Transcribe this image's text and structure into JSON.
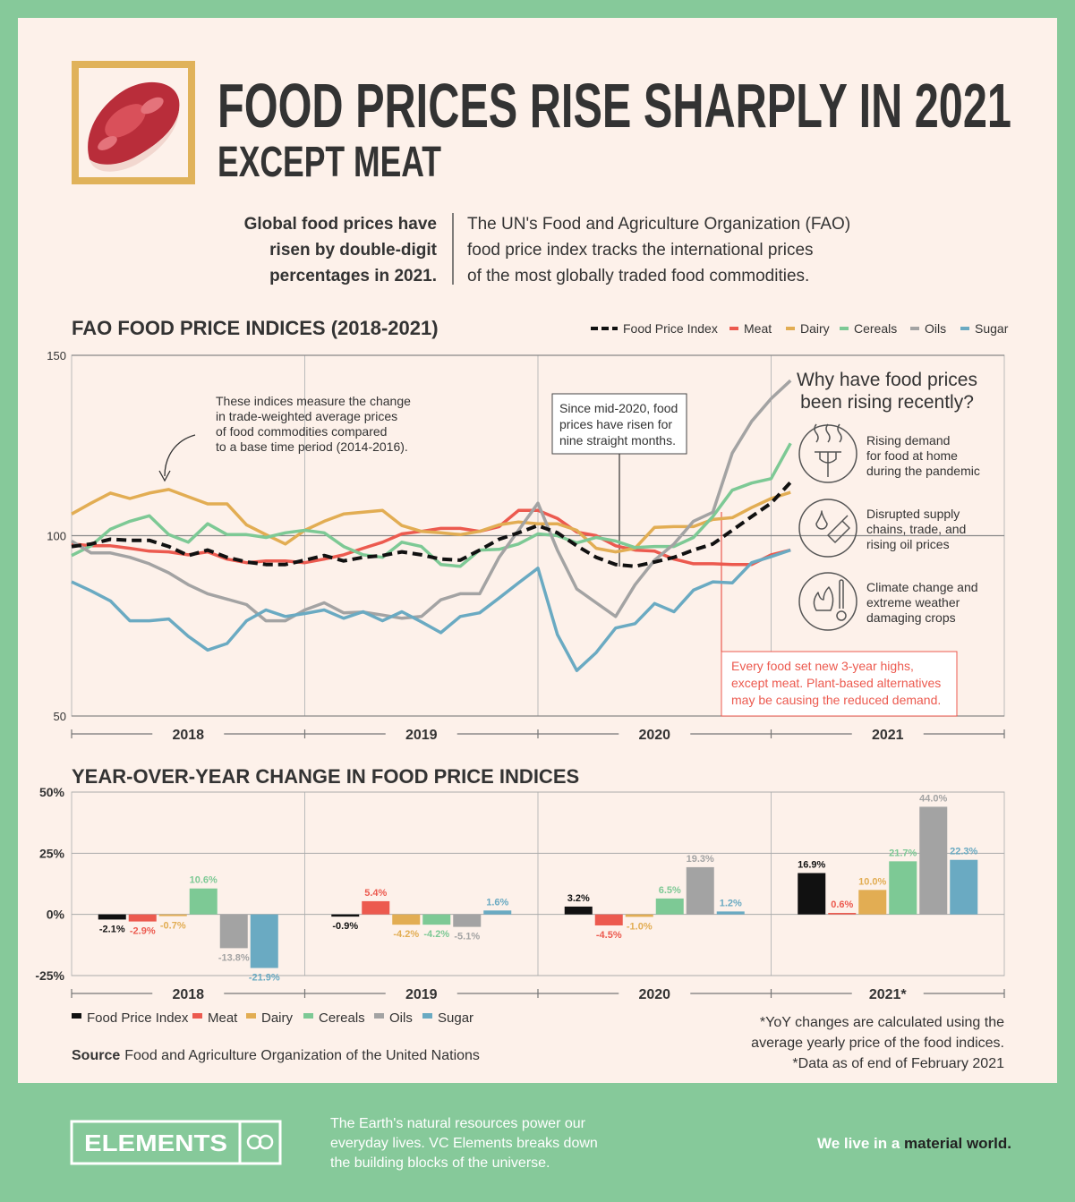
{
  "header": {
    "title": "FOOD PRICES RISE SHARPLY IN 2021",
    "subtitle": "EXCEPT MEAT"
  },
  "intro": {
    "left": [
      "Global food prices have",
      "risen by double-digit",
      "percentages in 2021."
    ],
    "right": [
      "The UN's Food and Agriculture Organization (FAO)",
      "food price index tracks the international prices",
      "of the most globally traded food commodities."
    ]
  },
  "chart_data": [
    {
      "type": "line",
      "title": "FAO FOOD PRICE INDICES (2018-2021)",
      "categories": [
        "2018",
        "2019",
        "2020",
        "2021"
      ],
      "ylim": [
        50,
        150
      ],
      "yticks": [
        50,
        100,
        150
      ],
      "grid": true,
      "series": [
        {
          "name": "Food Price Index",
          "color": "#111111",
          "line_style": "dashed",
          "values": [
            [
              97.0,
              97.7,
              99.0,
              98.7,
              98.7,
              97.0,
              94.5,
              96.0,
              94.0,
              92.7,
              92.0,
              92.0
            ],
            [
              93.2,
              94.5,
              93.0,
              94.0,
              94.5,
              95.5,
              94.7,
              93.5,
              93.2,
              96.0,
              99.0,
              100.8
            ],
            [
              102.8,
              100.8,
              97.2,
              94.0,
              92.0,
              91.5,
              92.7,
              94.0,
              96.0,
              97.7,
              101.5,
              105.3
            ],
            [
              109.0,
              114.8
            ]
          ]
        },
        {
          "name": "Meat",
          "color": "#ec5a4f",
          "line_style": "solid",
          "values": [
            [
              97.7,
              97.2,
              97.2,
              96.5,
              95.7,
              95.5,
              94.7,
              95.5,
              93.5,
              92.5,
              93.0,
              93.0
            ],
            [
              92.5,
              93.5,
              94.7,
              96.5,
              98.2,
              100.5,
              101.2,
              102.0,
              102.0,
              101.2,
              102.5,
              107.0
            ],
            [
              107.0,
              104.8,
              101.0,
              100.0,
              97.2,
              96.0,
              95.7,
              93.5,
              92.2,
              92.2,
              92.0,
              92.0
            ],
            [
              94.7,
              96.0
            ]
          ]
        },
        {
          "name": "Dairy",
          "color": "#e2ad53",
          "line_style": "solid",
          "values": [
            [
              106.0,
              109.0,
              111.8,
              110.3,
              111.8,
              112.8,
              110.8,
              108.8,
              108.8,
              103.0,
              100.3,
              97.7
            ],
            [
              101.5,
              104.0,
              106.0,
              106.5,
              107.0,
              102.8,
              101.2,
              100.8,
              100.3,
              101.2,
              103.0,
              103.8
            ],
            [
              103.3,
              103.3,
              101.5,
              96.5,
              95.5,
              96.5,
              102.3,
              102.5,
              102.5,
              104.5,
              105.0,
              107.8
            ],
            [
              110.3,
              112.0
            ]
          ]
        },
        {
          "name": "Cereals",
          "color": "#7dc995",
          "line_style": "solid",
          "values": [
            [
              94.5,
              97.2,
              101.8,
              104.0,
              105.5,
              100.3,
              98.2,
              103.3,
              100.3,
              100.3,
              99.5,
              100.8
            ],
            [
              101.5,
              100.8,
              97.0,
              94.7,
              94.0,
              98.2,
              97.0,
              92.0,
              91.5,
              96.0,
              96.2,
              97.7
            ],
            [
              100.5,
              100.0,
              98.0,
              99.5,
              98.5,
              96.7,
              97.0,
              97.0,
              99.5,
              105.3,
              112.6,
              114.6
            ],
            [
              115.8,
              125.6
            ]
          ]
        },
        {
          "name": "Oils",
          "color": "#a3a3a3",
          "line_style": "solid",
          "values": [
            [
              98.5,
              95.2,
              95.2,
              94.0,
              92.2,
              89.7,
              86.4,
              83.9,
              82.4,
              80.9,
              76.4,
              76.4
            ],
            [
              79.4,
              81.4,
              78.6,
              78.8,
              78.0,
              77.1,
              77.6,
              82.2,
              83.9,
              83.9,
              94.0,
              101.5
            ],
            [
              109.0,
              96.0,
              85.2,
              81.4,
              77.6,
              86.4,
              93.2,
              97.7,
              104.0,
              106.5,
              122.9,
              131.7
            ],
            [
              138.0,
              143.0
            ]
          ]
        },
        {
          "name": "Sugar",
          "color": "#6aaac2",
          "line_style": "solid",
          "values": [
            [
              87.2,
              84.7,
              81.9,
              76.4,
              76.4,
              76.9,
              72.1,
              68.3,
              70.1,
              76.4,
              79.4,
              77.6
            ],
            [
              78.4,
              79.4,
              77.1,
              78.9,
              76.4,
              78.9,
              76.1,
              73.1,
              77.6,
              78.6,
              82.7,
              86.9
            ],
            [
              91.0,
              72.6,
              62.6,
              67.6,
              74.4,
              75.6,
              81.2,
              78.9,
              84.9,
              87.2,
              86.9,
              92.5
            ],
            [
              94.2,
              96.0
            ]
          ]
        }
      ],
      "annotations": [
        [
          "These indices measure the change",
          "in trade-weighted average prices",
          "of food commodities compared",
          "to a base time period (2014-2016)."
        ],
        [
          "Since mid-2020, food",
          "prices have risen for",
          "nine straight months."
        ],
        [
          "Every food set new 3-year highs,",
          "except meat. Plant-based alternatives",
          "may be causing the reduced demand."
        ]
      ],
      "sidebar": {
        "title": [
          "Why have food prices",
          "been rising recently?"
        ],
        "items": [
          [
            "Rising demand",
            "for food at home",
            "during the pandemic"
          ],
          [
            "Disrupted supply",
            "chains, trade, and",
            "rising oil prices"
          ],
          [
            "Climate change and",
            "extreme weather",
            "damaging crops"
          ]
        ]
      }
    },
    {
      "type": "bar",
      "title": "YEAR-OVER-YEAR CHANGE IN FOOD PRICE INDICES",
      "categories": [
        "2018",
        "2019",
        "2020",
        "2021*"
      ],
      "ylim": [
        -25,
        50
      ],
      "yticks": [
        {
          "value": -25,
          "label": "-25%"
        },
        {
          "value": 0,
          "label": "0%"
        },
        {
          "value": 25,
          "label": "25%"
        },
        {
          "value": 50,
          "label": "50%"
        }
      ],
      "grid": true,
      "series": [
        {
          "name": "Food Price Index",
          "color": "#111111",
          "values": [
            -2.1,
            -0.9,
            3.2,
            16.9
          ],
          "value_labels": [
            "-2.1%",
            "-0.9%",
            "3.2%",
            "16.9%"
          ]
        },
        {
          "name": "Meat",
          "color": "#ec5a4f",
          "values": [
            -2.9,
            5.4,
            -4.5,
            0.6
          ],
          "value_labels": [
            "-2.9%",
            "5.4%",
            "-4.5%",
            "0.6%"
          ]
        },
        {
          "name": "Dairy",
          "color": "#e2ad53",
          "values": [
            -0.7,
            -4.2,
            -1.0,
            10.0
          ],
          "value_labels": [
            "-0.7%",
            "-4.2%",
            "-1.0%",
            "10.0%"
          ]
        },
        {
          "name": "Cereals",
          "color": "#7dc995",
          "values": [
            10.6,
            -4.2,
            6.5,
            21.7
          ],
          "value_labels": [
            "10.6%",
            "-4.2%",
            "6.5%",
            "21.7%"
          ]
        },
        {
          "name": "Oils",
          "color": "#a3a3a3",
          "values": [
            -13.8,
            -5.1,
            19.3,
            44.0
          ],
          "value_labels": [
            "-13.8%",
            "-5.1%",
            "19.3%",
            "44.0%"
          ]
        },
        {
          "name": "Sugar",
          "color": "#6aaac2",
          "values": [
            -21.9,
            1.6,
            1.2,
            22.3
          ],
          "value_labels": [
            "-21.9%",
            "1.6%",
            "1.2%",
            "22.3%"
          ]
        }
      ]
    }
  ],
  "notes": [
    "*YoY changes are calculated using the",
    "average yearly price of the food indices.",
    "*Data as of end of February 2021"
  ],
  "source": {
    "label": "Source",
    "text": "Food and Agriculture Organization of the United Nations"
  },
  "footer": {
    "brand": "ELEMENTS",
    "blurb": [
      "The Earth's natural resources power our",
      "everyday lives. VC Elements breaks down",
      "the building blocks of the universe."
    ],
    "tagline": "We live in a ",
    "tagline_emphasis": "material world."
  }
}
